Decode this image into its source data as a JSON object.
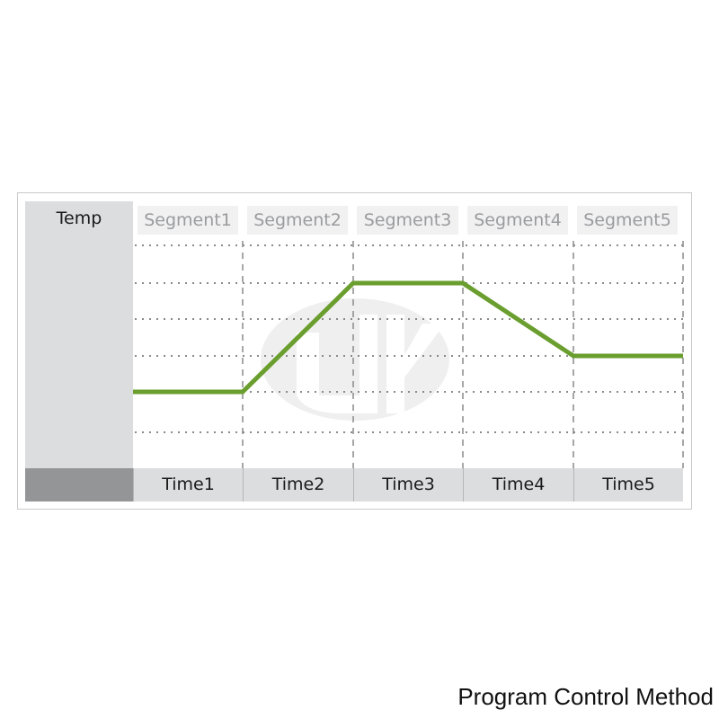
{
  "diagram": {
    "y_label": "Temp",
    "segments": [
      "Segment1",
      "Segment2",
      "Segment3",
      "Segment4",
      "Segment5"
    ],
    "times": [
      "Time1",
      "Time2",
      "Time3",
      "Time4",
      "Time5"
    ],
    "profile_levels": [
      2,
      2,
      5,
      5,
      3,
      3
    ],
    "grid_levels": 6,
    "line_color": "#6a9e2e",
    "caption": "Program Control Method"
  }
}
